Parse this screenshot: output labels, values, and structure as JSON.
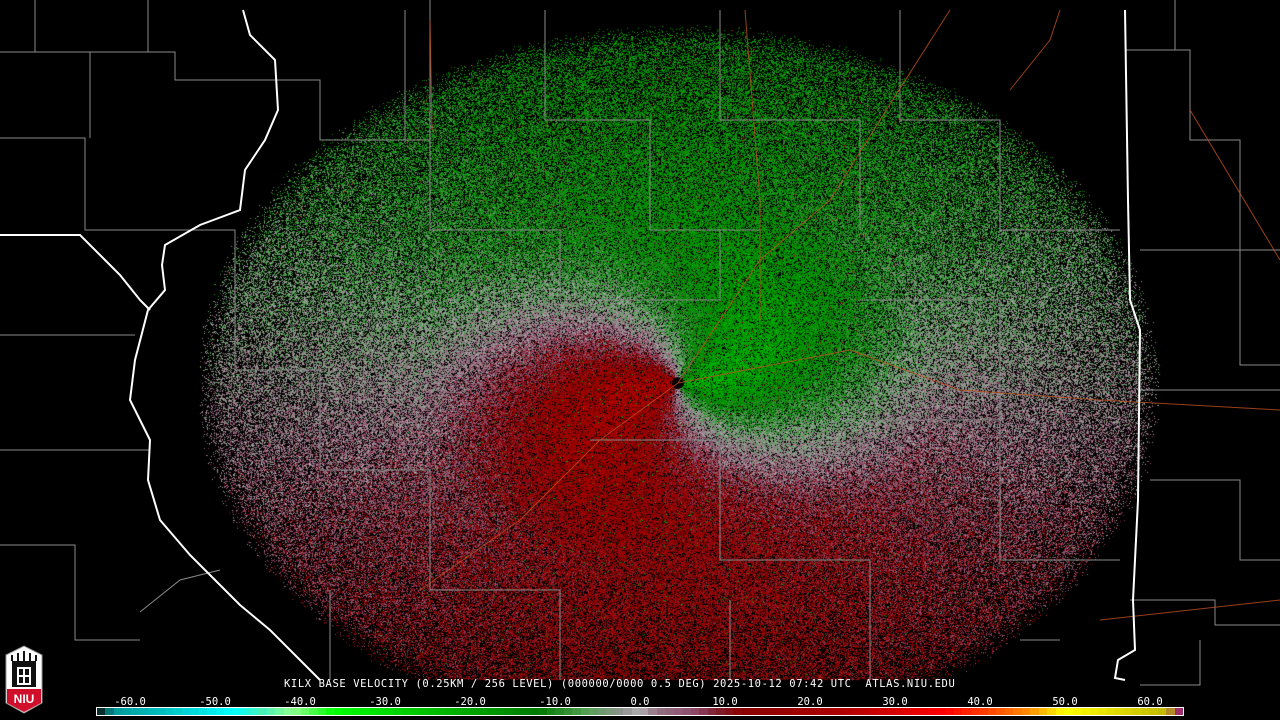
{
  "caption": "KILX BASE VELOCITY (0.25KM / 256 LEVEL) (000000/0000 0.5 DEG) 2025-10-12 07:42 UTC  ATLAS.NIU.EDU",
  "logo_text": "NIU",
  "colorbar": {
    "min": -64,
    "max": 64,
    "tick_labels": [
      "-60.0",
      "-50.0",
      "-40.0",
      "-30.0",
      "-20.0",
      "-10.0",
      "0.0",
      "10.0",
      "20.0",
      "30.0",
      "40.0",
      "50.0",
      "60.0"
    ],
    "tick_values": [
      -60,
      -50,
      -40,
      -30,
      -20,
      -10,
      0,
      10,
      20,
      30,
      40,
      50,
      60
    ],
    "stops": [
      {
        "v": -64,
        "c": "#0a0a0a"
      },
      {
        "v": -62,
        "c": "#009a9a"
      },
      {
        "v": -55,
        "c": "#00c8c8"
      },
      {
        "v": -48,
        "c": "#00ffff"
      },
      {
        "v": -44,
        "c": "#50f0b0"
      },
      {
        "v": -41,
        "c": "#90ff90"
      },
      {
        "v": -36,
        "c": "#00ff00"
      },
      {
        "v": -25,
        "c": "#00c000"
      },
      {
        "v": -12,
        "c": "#007a00"
      },
      {
        "v": -6,
        "c": "#58a058"
      },
      {
        "v": -2,
        "c": "#909090"
      },
      {
        "v": 0,
        "c": "#b0b0b0"
      },
      {
        "v": 2,
        "c": "#907080"
      },
      {
        "v": 6,
        "c": "#905070"
      },
      {
        "v": 9,
        "c": "#802030"
      },
      {
        "v": 12,
        "c": "#8a0000"
      },
      {
        "v": 24,
        "c": "#b00000"
      },
      {
        "v": 36,
        "c": "#ff0000"
      },
      {
        "v": 42,
        "c": "#ff5000"
      },
      {
        "v": 46,
        "c": "#ff9000"
      },
      {
        "v": 50,
        "c": "#ffff00"
      },
      {
        "v": 62,
        "c": "#c0b800"
      },
      {
        "v": 64,
        "c": "#900090"
      }
    ]
  },
  "colors": {
    "state_border": "#ffffff",
    "county_border": "#8a8a8a",
    "highway": "#c05020"
  }
}
